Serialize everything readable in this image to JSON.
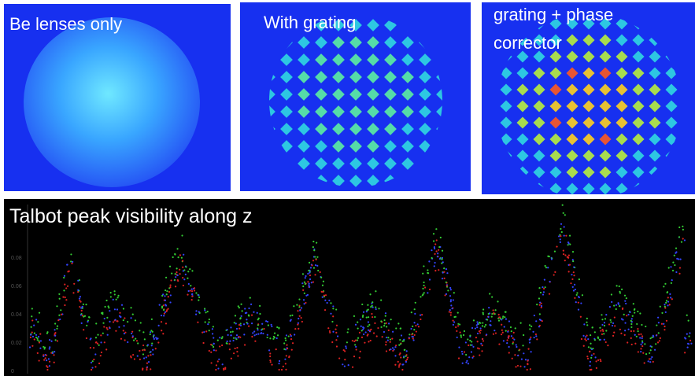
{
  "panels": [
    {
      "label": "Be lenses only"
    },
    {
      "label": "With grating"
    },
    {
      "label": "grating + phase corrector"
    }
  ],
  "plot": {
    "title": "Talbot peak visibility along z",
    "yticks": [
      "0.08",
      "0.06",
      "0.04",
      "0.02",
      "0"
    ]
  }
}
